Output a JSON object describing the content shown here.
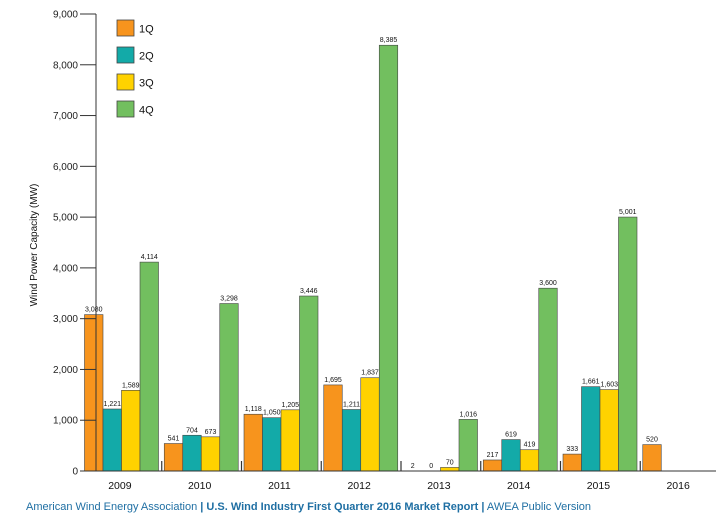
{
  "chart_data": {
    "type": "bar",
    "title": "",
    "xlabel": "",
    "ylabel": "Wind Power Capacity (MW)",
    "ylim": [
      0,
      9000
    ],
    "yticks": [
      "0",
      "1,000",
      "2,000",
      "3,000",
      "4,000",
      "5,000",
      "6,000",
      "7,000",
      "8,000",
      "9,000"
    ],
    "ytick_values": [
      0,
      1000,
      2000,
      3000,
      4000,
      5000,
      6000,
      7000,
      8000,
      9000
    ],
    "categories": [
      "2009",
      "2010",
      "2011",
      "2012",
      "2013",
      "2014",
      "2015",
      "2016"
    ],
    "legend_position": "top-left",
    "series": [
      {
        "name": "1Q",
        "color": "#f7941d",
        "values": [
          3080,
          541,
          1118,
          1695,
          2,
          217,
          333,
          520
        ],
        "labels": [
          "3,080",
          "541",
          "1,118",
          "1,695",
          "2",
          "217",
          "333",
          "520"
        ]
      },
      {
        "name": "2Q",
        "color": "#13aaa8",
        "values": [
          1221,
          704,
          1050,
          1211,
          0,
          619,
          1661,
          null
        ],
        "labels": [
          "1,221",
          "704",
          "1,050",
          "1,211",
          "0",
          "619",
          "1,661",
          null
        ]
      },
      {
        "name": "3Q",
        "color": "#ffd200",
        "values": [
          1589,
          673,
          1205,
          1837,
          70,
          419,
          1603,
          null
        ],
        "labels": [
          "1,589",
          "673",
          "1,205",
          "1,837",
          "70",
          "419",
          "1,603",
          null
        ]
      },
      {
        "name": "4Q",
        "color": "#72bf5f",
        "values": [
          4114,
          3298,
          3446,
          8385,
          1016,
          3600,
          5001,
          null
        ],
        "labels": [
          "4,114",
          "3,298",
          "3,446",
          "8,385",
          "1,016",
          "3,600",
          "5,001",
          null
        ]
      }
    ]
  },
  "footer": {
    "org": "American Wind Energy Association",
    "sep1": "|",
    "report": "U.S. Wind Industry First Quarter 2016 Market Report",
    "sep2": "|",
    "version": "AWEA Public Version"
  }
}
